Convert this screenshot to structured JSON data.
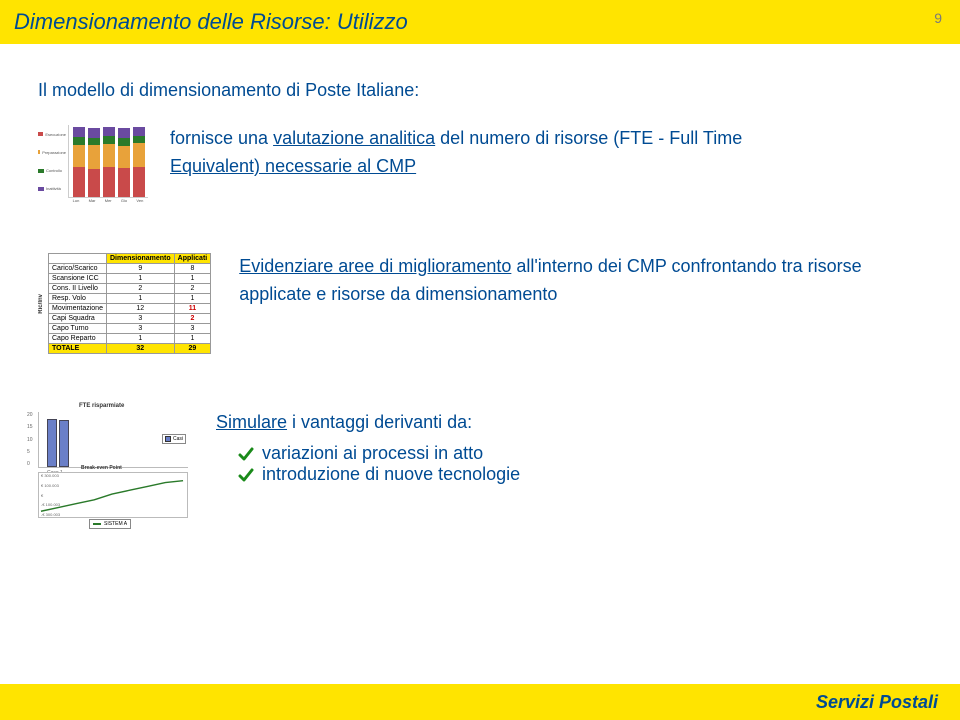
{
  "page_number": "9",
  "header_title": "Dimensionamento delle Risorse: Utilizzo",
  "intro": "Il modello di dimensionamento di Poste Italiane:",
  "block1": {
    "prefix": "fornisce una ",
    "u1": "valutazione analitica",
    "mid": " del numero di risorse (FTE - Full Time ",
    "u2": "Equivalent) necessarie al CMP",
    "stacked": {
      "colors": [
        "#c94a4a",
        "#e8a23a",
        "#2a7a2a",
        "#6a4aa0"
      ],
      "legend_labels": [
        "Esecuzione",
        "Preparazione",
        "Controllo",
        "Inattività"
      ],
      "bars": [
        {
          "label": "Lun",
          "seg": [
            30,
            22,
            8,
            10
          ]
        },
        {
          "label": "Mar",
          "seg": [
            28,
            24,
            7,
            10
          ]
        },
        {
          "label": "Mer",
          "seg": [
            30,
            23,
            8,
            9
          ]
        },
        {
          "label": "Gio",
          "seg": [
            29,
            22,
            8,
            10
          ]
        },
        {
          "label": "Ven",
          "seg": [
            30,
            24,
            7,
            9
          ]
        }
      ]
    }
  },
  "block2": {
    "text_pre": "Evidenziare aree di miglioramento",
    "text_rest": " all'interno dei CMP confrontando tra risorse applicate e risorse da dimensionamento",
    "side_label": "Ric/Inv",
    "table": {
      "headers": [
        "",
        "Dimensionamento",
        "Applicati"
      ],
      "rows": [
        {
          "label": "Carico/Scarico",
          "a": "9",
          "b": "8",
          "hl": false
        },
        {
          "label": "Scansione ICC",
          "a": "1",
          "b": "1",
          "hl": false
        },
        {
          "label": "Cons. II Livello",
          "a": "2",
          "b": "2",
          "hl": false
        },
        {
          "label": "Resp. Volo",
          "a": "1",
          "b": "1",
          "hl": false
        },
        {
          "label": "Movimentazione",
          "a": "12",
          "b": "11",
          "hl": true
        },
        {
          "label": "Capi Squadra",
          "a": "3",
          "b": "2",
          "hl": true
        },
        {
          "label": "Capo Turno",
          "a": "3",
          "b": "3",
          "hl": false
        },
        {
          "label": "Capo Reparto",
          "a": "1",
          "b": "1",
          "hl": false
        }
      ],
      "total": {
        "label": "TOTALE",
        "a": "32",
        "b": "29"
      }
    }
  },
  "block3": {
    "head_pre": "Simulare",
    "head_rest": " i vantaggi derivanti da:",
    "bullets": [
      "variazioni ai processi in atto",
      "introduzione di nuove tecnologie"
    ],
    "check_color": "#1a8a1a",
    "combo": {
      "top_title": "FTE risparmiate",
      "bar_color": "#6a7fc8",
      "yticks": [
        "0",
        "5",
        "10",
        "15",
        "20"
      ],
      "bars": [
        {
          "label": "Caso 1",
          "h": 48
        },
        {
          "label": "",
          "h": 47
        }
      ],
      "top_legend": "Casi",
      "bot_title": "Break-even Point",
      "line_color": "#2a7a2a",
      "bot_yticks": [
        "-€ 300.003",
        "-€ 100.003",
        "€",
        "€ 100.003",
        "€ 300.003"
      ],
      "bot_legend": "SISTEM A",
      "line_points": "2,40 20,36 38,32 56,28 74,22 92,18 110,14 128,10 146,8"
    }
  },
  "footer": "Servizi Postali",
  "colors": {
    "yellow": "#ffe400",
    "blue": "#004b93"
  }
}
